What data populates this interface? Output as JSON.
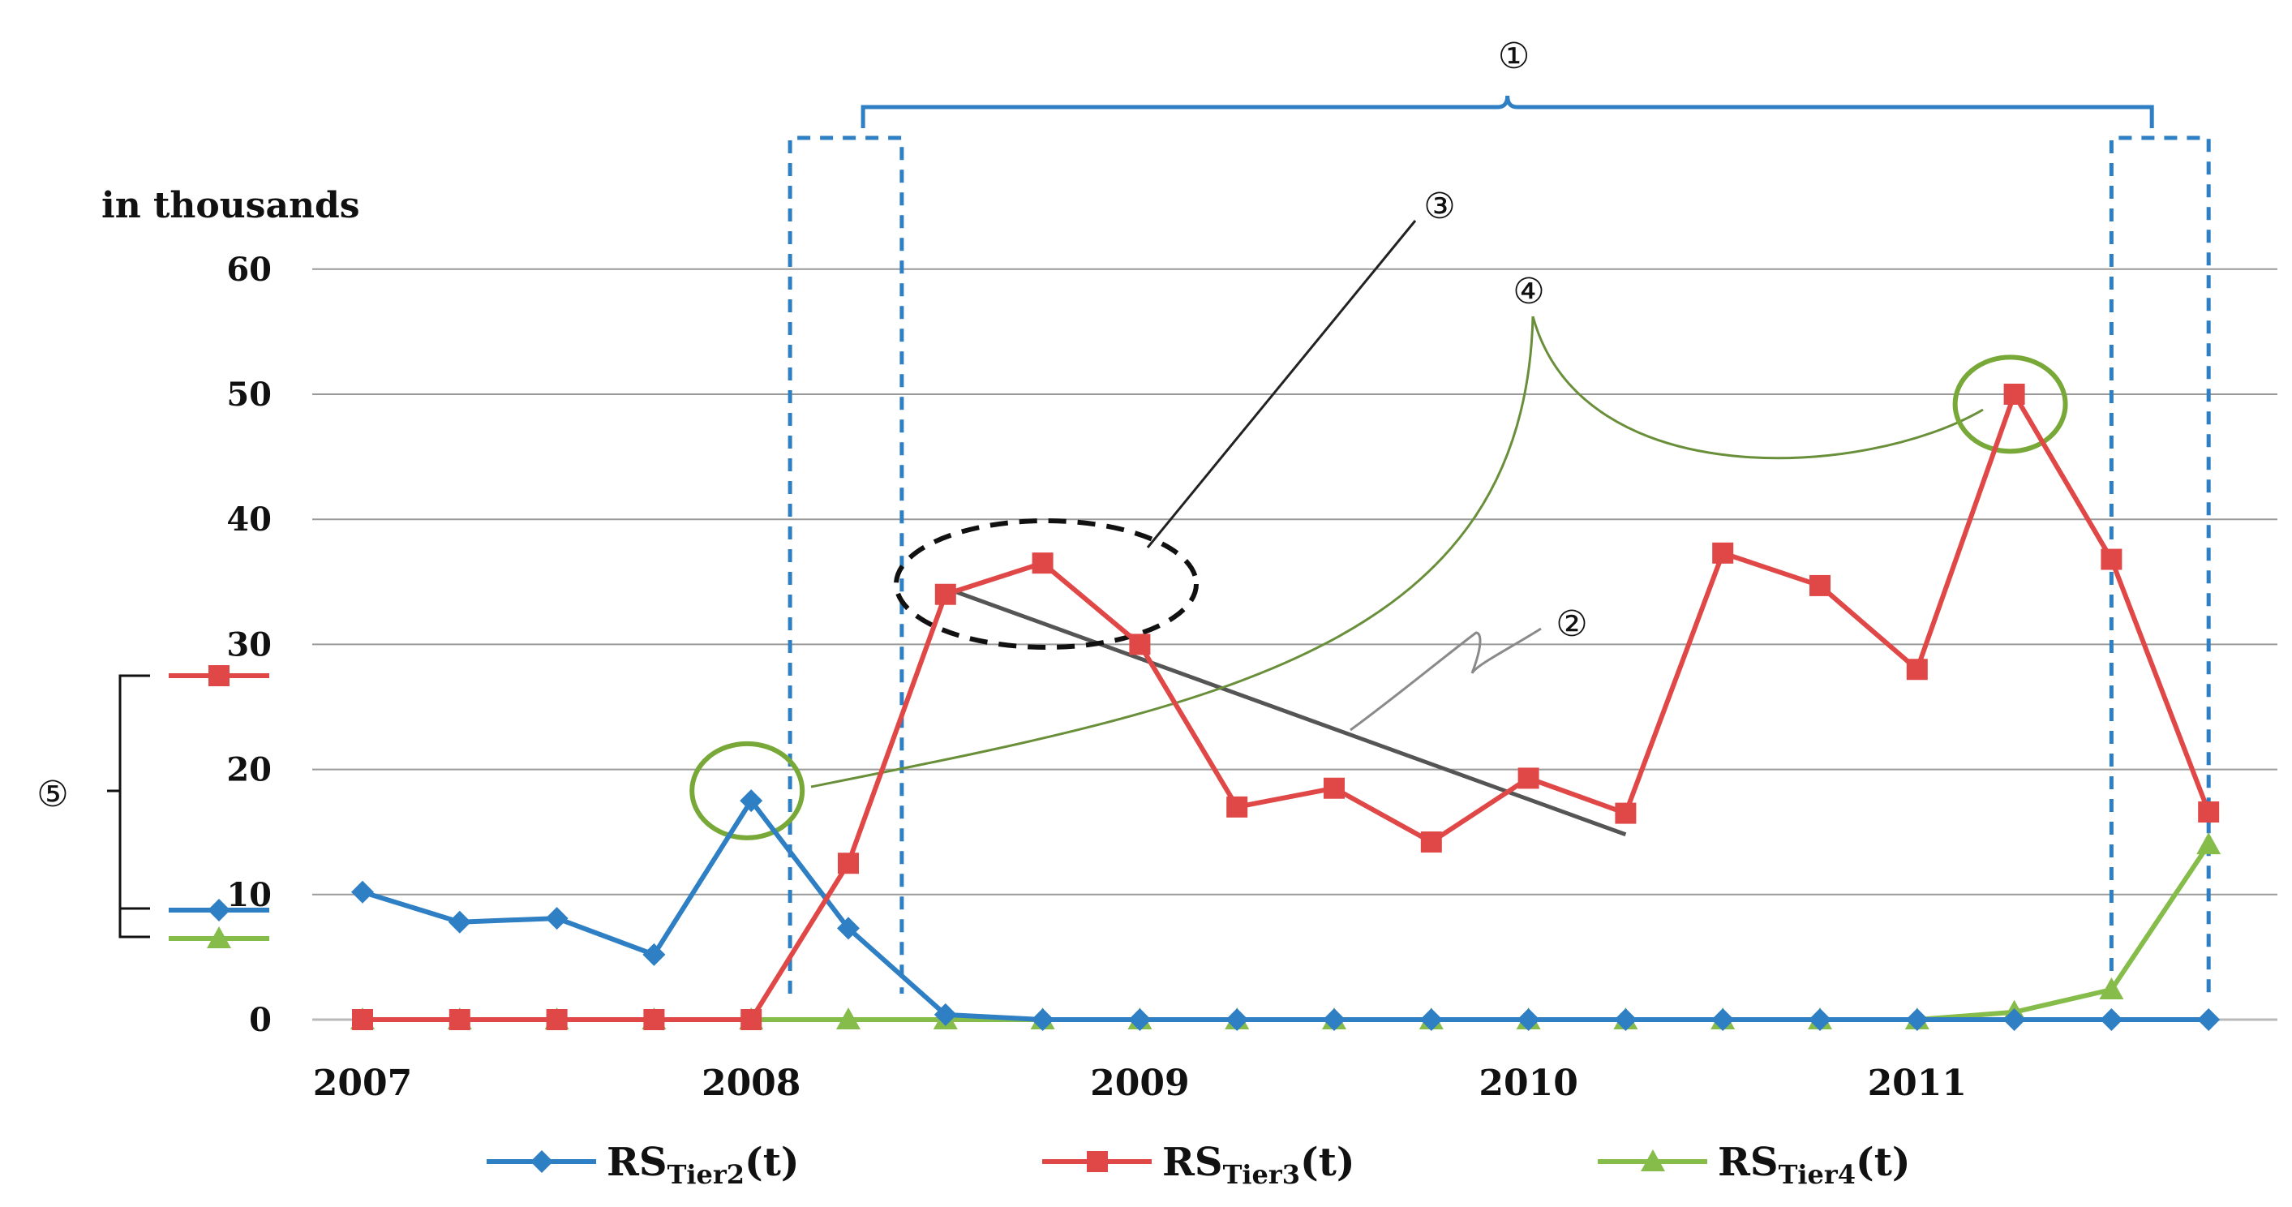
{
  "chart_data": {
    "type": "line",
    "unit_label": "in thousands",
    "ylim": [
      0,
      60
    ],
    "y_ticks": [
      0,
      10,
      20,
      30,
      40,
      50,
      60
    ],
    "x_ticks": [
      "2007",
      "2008",
      "2009",
      "2010",
      "2011"
    ],
    "x_tick_positions": [
      0,
      4,
      8,
      12,
      16
    ],
    "x_range": [
      0,
      19
    ],
    "grid": true,
    "series": [
      {
        "name": "RS_Tier2(t)",
        "legend_main": "RS",
        "legend_sub": "Tier2",
        "legend_suffix": "(t)",
        "color": "#2e7fc3",
        "marker": "diamond",
        "x": [
          0,
          1,
          2,
          3,
          4,
          5,
          6,
          7,
          8,
          9,
          10,
          11,
          12,
          13,
          14,
          15,
          16,
          17,
          18,
          19
        ],
        "values": [
          10.2,
          7.8,
          8.1,
          5.2,
          17.5,
          7.3,
          0.4,
          0,
          0,
          0,
          0,
          0,
          0,
          0,
          0,
          0,
          0,
          0,
          0,
          0
        ]
      },
      {
        "name": "RS_Tier3(t)",
        "legend_main": "RS",
        "legend_sub": "Tier3",
        "legend_suffix": "(t)",
        "color": "#e04848",
        "marker": "square",
        "x": [
          0,
          1,
          2,
          3,
          4,
          5,
          6,
          7,
          8,
          9,
          10,
          11,
          12,
          13,
          14,
          15,
          16,
          17,
          18,
          19
        ],
        "values": [
          0,
          0,
          0,
          0,
          0,
          12.5,
          34,
          36.5,
          30,
          17,
          18.5,
          14.2,
          19.3,
          16.5,
          37.3,
          34.7,
          28,
          50,
          36.8,
          16.6
        ]
      },
      {
        "name": "RS_Tier4(t)",
        "legend_main": "RS",
        "legend_sub": "Tier4",
        "legend_suffix": "(t)",
        "color": "#86bc4a",
        "marker": "triangle",
        "x": [
          0,
          1,
          2,
          3,
          4,
          5,
          6,
          7,
          8,
          9,
          10,
          11,
          12,
          13,
          14,
          15,
          16,
          17,
          18,
          19
        ],
        "values": [
          0,
          0,
          0,
          0,
          0,
          0,
          0,
          0,
          0,
          0,
          0,
          0,
          0,
          0,
          0,
          0,
          0,
          0.6,
          2.4,
          14
        ]
      }
    ],
    "trend_line": {
      "x": [
        6,
        13
      ],
      "values": [
        34.5,
        14.8
      ],
      "color": "#555555"
    },
    "annotations": {
      "label1": "①",
      "label2": "②",
      "label3": "③",
      "label4": "④",
      "label5": "⑤",
      "bracket_span": [
        4.4,
        19
      ],
      "dashed_windows": [
        [
          4.4,
          5.55
        ],
        [
          18,
          19
        ]
      ],
      "circle3_center": [
        7,
        35
      ],
      "circle4_points": [
        [
          4,
          18.3
        ],
        [
          17,
          49.2
        ]
      ]
    }
  }
}
